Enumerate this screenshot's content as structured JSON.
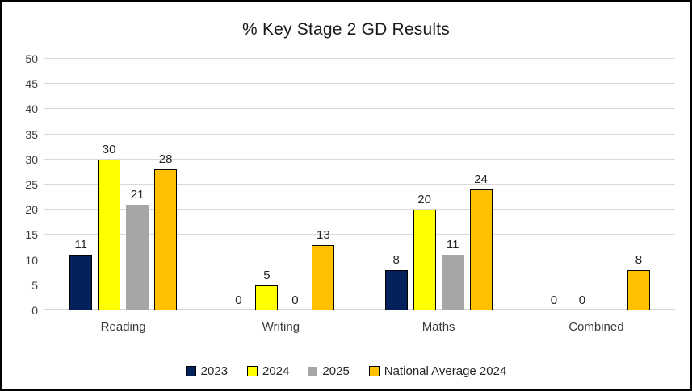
{
  "title": "% Key Stage 2 GD Results",
  "chart_data": {
    "type": "bar",
    "title": "% Key Stage 2 GD Results",
    "categories": [
      "Reading",
      "Writing",
      "Maths",
      "Combined"
    ],
    "series": [
      {
        "name": "2023",
        "color": "#04215C",
        "outlined": true,
        "values": [
          11,
          0,
          8,
          0
        ]
      },
      {
        "name": "2024",
        "color": "#FFFF00",
        "outlined": true,
        "values": [
          30,
          5,
          20,
          0
        ]
      },
      {
        "name": "2025",
        "color": "#A6A6A6",
        "outlined": false,
        "values": [
          21,
          0,
          11,
          null
        ]
      },
      {
        "name": "National Average 2024",
        "color": "#FFC000",
        "outlined": true,
        "values": [
          28,
          13,
          24,
          8
        ]
      }
    ],
    "xlabel": "",
    "ylabel": "",
    "ylim": [
      0,
      50
    ],
    "ytick_step": 5,
    "grid": "horizontal",
    "gridline_color": "#D9D9D9",
    "legend_position": "bottom",
    "data_labels": true
  }
}
